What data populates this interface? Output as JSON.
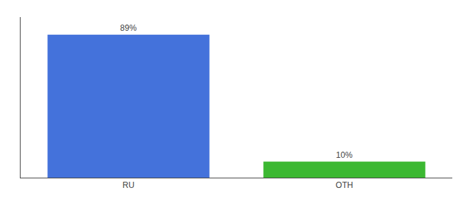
{
  "chart_data": {
    "type": "bar",
    "categories": [
      "RU",
      "OTH"
    ],
    "values": [
      89,
      10
    ],
    "value_labels": [
      "89%",
      "10%"
    ],
    "colors": [
      "#4472db",
      "#3cb832"
    ],
    "ylim": [
      0,
      100
    ],
    "data_labels": true,
    "tick_labels": "x",
    "grid": false
  }
}
